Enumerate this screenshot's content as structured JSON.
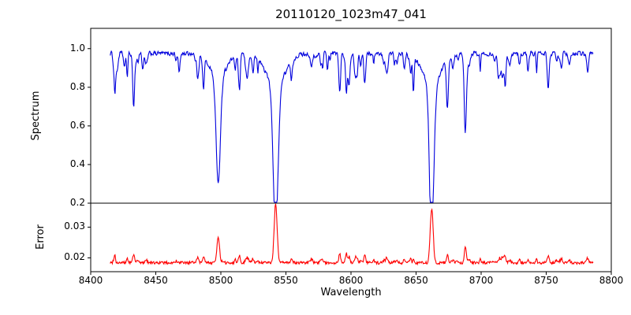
{
  "figure": {
    "background": "#ffffff",
    "frame_color": "#000000"
  },
  "chart_data": {
    "type": "line",
    "title": "20110120_1023m47_041",
    "xlabel": "Wavelength",
    "xlim": [
      8400,
      8800
    ],
    "xticks": [
      8400,
      8450,
      8500,
      8550,
      8600,
      8650,
      8700,
      8750,
      8800
    ],
    "x_data_range": [
      8415,
      8786
    ],
    "n_points": 900,
    "panels": [
      {
        "ylabel": "Spectrum",
        "color": "#0000dd",
        "ylim": [
          0.2,
          1.105
        ],
        "yticks": [
          0.2,
          0.4,
          0.6,
          0.8,
          1.0
        ],
        "model": {
          "continuum": 0.975,
          "noise_amp": 0.016,
          "seed": 1234,
          "clip": [
            0.205,
            1.04
          ],
          "absorption_lines": [
            {
              "c": 8420,
              "d": 0.1,
              "w": 1.3
            },
            {
              "c": 8426,
              "d": 0.07,
              "w": 1.0
            },
            {
              "c": 8433,
              "d": 0.2,
              "w": 1.0
            },
            {
              "c": 8440,
              "d": 0.08,
              "w": 0.8
            },
            {
              "c": 8468,
              "d": 0.1,
              "w": 0.9
            },
            {
              "c": 8498.0,
              "d": 0.56,
              "w": 2.2
            },
            {
              "c": 8514,
              "d": 0.16,
              "w": 0.9
            },
            {
              "c": 8542.1,
              "d": 0.75,
              "w": 2.6
            },
            {
              "c": 8582,
              "d": 0.08,
              "w": 0.8
            },
            {
              "c": 8598,
              "d": 0.12,
              "w": 0.9
            },
            {
              "c": 8611,
              "d": 0.08,
              "w": 0.8
            },
            {
              "c": 8648,
              "d": 0.1,
              "w": 0.8
            },
            {
              "c": 8662.1,
              "d": 0.72,
              "w": 2.4
            },
            {
              "c": 8674,
              "d": 0.22,
              "w": 1.0
            },
            {
              "c": 8688,
              "d": 0.32,
              "w": 1.3
            },
            {
              "c": 8713,
              "d": 0.08,
              "w": 0.8
            },
            {
              "c": 8736,
              "d": 0.09,
              "w": 0.8
            },
            {
              "c": 8752,
              "d": 0.1,
              "w": 0.8
            }
          ],
          "minor_lines": {
            "count": 75,
            "seed": 77,
            "depth_min": 0.02,
            "depth_max": 0.12,
            "width_min": 0.5,
            "width_max": 1.4
          }
        }
      },
      {
        "ylabel": "Error",
        "color": "#ff0000",
        "ylim": [
          0.0155,
          0.0378
        ],
        "yticks": [
          0.02,
          0.03
        ],
        "model": {
          "baseline": 0.0184,
          "noise_amp": 0.00045,
          "seed": 99,
          "clip": [
            0.0158,
            0.0376
          ],
          "minor_coupling": 0.015,
          "spikes": [
            {
              "c": 8498,
              "a": 0.0082,
              "w": 1.4
            },
            {
              "c": 8542.1,
              "a": 0.0192,
              "w": 1.6
            },
            {
              "c": 8662.1,
              "a": 0.0178,
              "w": 1.5
            },
            {
              "c": 8674,
              "a": 0.0022,
              "w": 1.0
            },
            {
              "c": 8688,
              "a": 0.0035,
              "w": 1.1
            },
            {
              "c": 8433,
              "a": 0.0016,
              "w": 0.9
            },
            {
              "c": 8514,
              "a": 0.0018,
              "w": 0.9
            },
            {
              "c": 8598,
              "a": 0.0013,
              "w": 0.9
            },
            {
              "c": 8611,
              "a": 0.0012,
              "w": 0.8
            },
            {
              "c": 8736,
              "a": 0.0012,
              "w": 0.8
            },
            {
              "c": 8752,
              "a": 0.0013,
              "w": 0.8
            }
          ]
        }
      }
    ]
  }
}
